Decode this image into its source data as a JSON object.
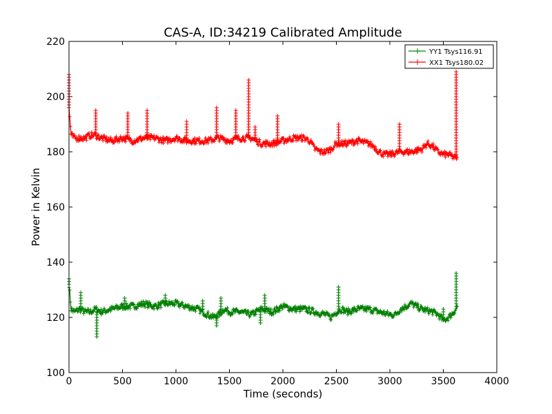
{
  "chart_data": {
    "type": "line",
    "title": "CAS-A, ID:34219 Calibrated Amplitude",
    "xlabel": "Time (seconds)",
    "ylabel": "Power in Kelvin",
    "xlim": [
      0,
      4000
    ],
    "ylim": [
      100,
      220
    ],
    "xticks": [
      0,
      500,
      1000,
      1500,
      2000,
      2500,
      3000,
      3500,
      4000
    ],
    "yticks": [
      100,
      120,
      140,
      160,
      180,
      200,
      220
    ],
    "xtick_labels": [
      "0",
      "500",
      "1000",
      "1500",
      "2000",
      "2500",
      "3000",
      "3500",
      "4000"
    ],
    "ytick_labels": [
      "100",
      "120",
      "140",
      "160",
      "180",
      "200",
      "220"
    ],
    "grid": false,
    "legend_position": "top-right",
    "marker": "plus",
    "series": [
      {
        "name": "YY1 Tsys116.91",
        "color": "#008000",
        "x": [
          0,
          20,
          50,
          100,
          150,
          200,
          250,
          300,
          400,
          500,
          600,
          700,
          800,
          900,
          1000,
          1100,
          1200,
          1250,
          1300,
          1350,
          1400,
          1450,
          1500,
          1600,
          1700,
          1800,
          1900,
          2000,
          2100,
          2200,
          2300,
          2400,
          2450,
          2500,
          2550,
          2600,
          2700,
          2800,
          2900,
          3000,
          3050,
          3100,
          3200,
          3300,
          3400,
          3450,
          3500,
          3550,
          3600,
          3630
        ],
        "y": [
          132,
          123,
          122,
          123,
          122,
          122,
          123,
          122,
          123,
          124,
          124,
          125,
          124,
          125,
          125,
          124,
          123,
          122,
          121,
          120,
          121,
          123,
          122,
          122,
          121,
          123,
          122,
          124,
          123,
          123,
          122,
          121,
          120,
          122,
          123,
          122,
          123,
          123,
          122,
          121,
          121,
          123,
          125,
          123,
          122,
          121,
          119,
          120,
          122,
          124
        ],
        "spikes": [
          [
            0,
            134
          ],
          [
            110,
            129
          ],
          [
            260,
            113
          ],
          [
            520,
            127
          ],
          [
            900,
            128
          ],
          [
            1250,
            126
          ],
          [
            1380,
            117
          ],
          [
            1420,
            127
          ],
          [
            1790,
            118
          ],
          [
            1830,
            128
          ],
          [
            2520,
            131
          ],
          [
            3500,
            123
          ],
          [
            3620,
            136
          ]
        ]
      },
      {
        "name": "XX1 Tsys180.02",
        "color": "#ff0000",
        "x": [
          0,
          20,
          50,
          100,
          150,
          200,
          250,
          300,
          400,
          500,
          600,
          700,
          800,
          900,
          1000,
          1100,
          1200,
          1300,
          1400,
          1500,
          1600,
          1700,
          1800,
          1900,
          2000,
          2100,
          2200,
          2250,
          2300,
          2350,
          2400,
          2450,
          2500,
          2600,
          2700,
          2800,
          2850,
          2900,
          2950,
          3000,
          3100,
          3200,
          3300,
          3350,
          3400,
          3450,
          3500,
          3550,
          3600,
          3630
        ],
        "y": [
          196,
          186,
          185,
          185,
          185,
          186,
          186,
          185,
          184,
          185,
          184,
          185,
          185,
          184,
          185,
          184,
          184,
          184,
          185,
          184,
          185,
          185,
          183,
          183,
          184,
          185,
          185,
          184,
          181,
          180,
          180,
          181,
          183,
          183,
          184,
          183,
          182,
          180,
          179,
          179,
          180,
          180,
          181,
          183,
          182,
          180,
          179,
          179,
          178,
          178
        ],
        "spikes": [
          [
            0,
            208
          ],
          [
            250,
            195
          ],
          [
            550,
            194
          ],
          [
            730,
            195
          ],
          [
            1100,
            191
          ],
          [
            1380,
            196
          ],
          [
            1560,
            195
          ],
          [
            1680,
            206
          ],
          [
            1740,
            189
          ],
          [
            1950,
            193
          ],
          [
            2520,
            190
          ],
          [
            3090,
            190
          ],
          [
            3620,
            209
          ]
        ]
      }
    ]
  }
}
